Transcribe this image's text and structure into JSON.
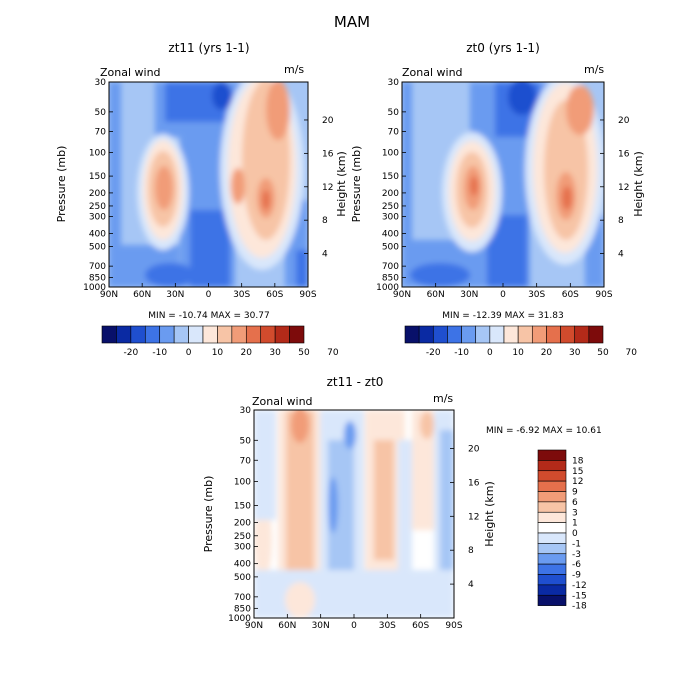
{
  "figure_title": "MAM",
  "chart_data": [
    {
      "type": "heatmap",
      "title": "zt11 (yrs 1-1)",
      "variable_label": "Zonal wind",
      "units": "m/s",
      "xlabel": "",
      "ylabel": "Pressure (mb)",
      "y2label": "Height (km)",
      "x_ticks": [
        "90N",
        "60N",
        "30N",
        "0",
        "30S",
        "60S",
        "90S"
      ],
      "y_ticks": [
        30,
        50,
        70,
        100,
        150,
        200,
        250,
        300,
        400,
        500,
        700,
        850,
        1000
      ],
      "y2_ticks": [
        20,
        16,
        12,
        8,
        4
      ],
      "ylim": [
        1000,
        30
      ],
      "min_value": "-10.74",
      "max_value": "30.77",
      "stats_text": "MIN = -10.74   MAX = 30.77",
      "colorbar": {
        "orientation": "horizontal",
        "levels": [
          "-20",
          "-10",
          "0",
          "10",
          "20",
          "30",
          "50",
          "70"
        ],
        "colors": [
          "#08106a",
          "#0a2aa3",
          "#1f4fcf",
          "#3d73e6",
          "#6a9bf0",
          "#a6c6f5",
          "#d9e7fb",
          "#fde7da",
          "#f7c4a6",
          "#f19c78",
          "#e5704c",
          "#d14b2d",
          "#b32a19",
          "#7d0b0b"
        ]
      },
      "features": [
        {
          "lat": 25,
          "p": 200,
          "value": 30.77
        },
        {
          "lat": -25,
          "p": 200,
          "value": 20
        },
        {
          "lat": -60,
          "p": 200,
          "value": 25
        },
        {
          "lat": 0,
          "p": 100,
          "value": -10.74
        }
      ]
    },
    {
      "type": "heatmap",
      "title": "zt0 (yrs 1-1)",
      "variable_label": "Zonal wind",
      "units": "m/s",
      "xlabel": "",
      "ylabel": "Pressure (mb)",
      "y2label": "Height (km)",
      "x_ticks": [
        "90N",
        "60N",
        "30N",
        "0",
        "30S",
        "60S",
        "90S"
      ],
      "y_ticks": [
        30,
        50,
        70,
        100,
        150,
        200,
        250,
        300,
        400,
        500,
        700,
        850,
        1000
      ],
      "y2_ticks": [
        20,
        16,
        12,
        8,
        4
      ],
      "ylim": [
        1000,
        30
      ],
      "min_value": "-12.39",
      "max_value": "31.83",
      "stats_text": "MIN = -12.39   MAX = 31.83",
      "colorbar": {
        "orientation": "horizontal",
        "levels": [
          "-20",
          "-10",
          "0",
          "10",
          "20",
          "30",
          "50",
          "70"
        ],
        "colors": [
          "#08106a",
          "#0a2aa3",
          "#1f4fcf",
          "#3d73e6",
          "#6a9bf0",
          "#a6c6f5",
          "#d9e7fb",
          "#fde7da",
          "#f7c4a6",
          "#f19c78",
          "#e5704c",
          "#d14b2d",
          "#b32a19",
          "#7d0b0b"
        ]
      },
      "features": [
        {
          "lat": 25,
          "p": 200,
          "value": 31.83
        },
        {
          "lat": -60,
          "p": 200,
          "value": 28
        },
        {
          "lat": 0,
          "p": 50,
          "value": -12.39
        }
      ]
    },
    {
      "type": "heatmap",
      "title": "zt11 - zt0",
      "variable_label": "Zonal wind",
      "units": "m/s",
      "xlabel": "",
      "ylabel": "Pressure (mb)",
      "y2label": "Height (km)",
      "x_ticks": [
        "90N",
        "60N",
        "30N",
        "0",
        "30S",
        "60S",
        "90S"
      ],
      "y_ticks": [
        30,
        50,
        70,
        100,
        150,
        200,
        250,
        300,
        400,
        500,
        700,
        850,
        1000
      ],
      "y2_ticks": [
        20,
        16,
        12,
        8,
        4
      ],
      "ylim": [
        1000,
        30
      ],
      "min_value": "-6.92",
      "max_value": "10.61",
      "stats_text": "MIN =   -6.92   MAX =   10.61",
      "colorbar": {
        "orientation": "vertical",
        "levels": [
          "18",
          "15",
          "12",
          "9",
          "6",
          "3",
          "1",
          "0",
          "-1",
          "-3",
          "-6",
          "-9",
          "-12",
          "-15",
          "-18"
        ],
        "colors": [
          "#7d0b0b",
          "#b32a19",
          "#d14b2d",
          "#e5704c",
          "#f19c78",
          "#f7c4a6",
          "#fde7da",
          "#ffffff",
          "#d9e7fb",
          "#a6c6f5",
          "#6a9bf0",
          "#3d73e6",
          "#1f4fcf",
          "#0a2aa3",
          "#08106a"
        ]
      }
    }
  ]
}
